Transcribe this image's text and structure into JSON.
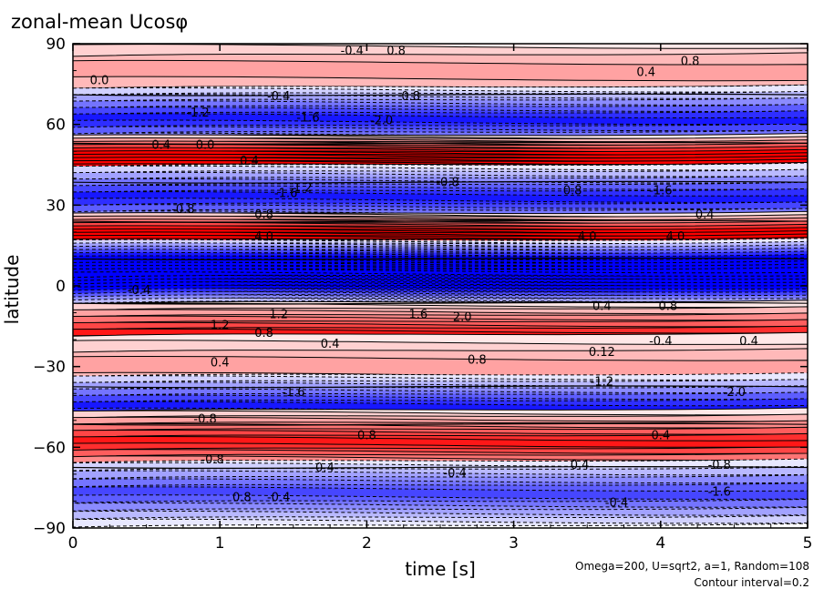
{
  "chart_data": {
    "type": "heatmap",
    "title": "zonal-mean Ucosφ",
    "xlabel": "time [s]",
    "ylabel": "latitude",
    "xlim": [
      0,
      5
    ],
    "ylim": [
      -90,
      90
    ],
    "x_ticks": [
      "0",
      "1",
      "2",
      "3",
      "4",
      "5"
    ],
    "x_tick_values": [
      0,
      1,
      2,
      3,
      4,
      5
    ],
    "y_ticks": [
      "90",
      "60",
      "30",
      "0",
      "−30",
      "−60",
      "−90"
    ],
    "y_tick_values": [
      90,
      60,
      30,
      0,
      -30,
      -60,
      -90
    ],
    "annotations": [
      "Omega=200, U=sqrt2, a=1, Random=108",
      "Contour interval=0.2"
    ],
    "contour_interval": 0.2,
    "colors": {
      "positive": "#ff0000",
      "negative": "#0000ff",
      "zero": "#ffffff"
    },
    "bands": [
      {
        "lat": 80,
        "amplitude": 0.8,
        "sign": 1
      },
      {
        "lat": 62,
        "amplitude": 2.0,
        "sign": -1
      },
      {
        "lat": 44,
        "amplitude": 4.0,
        "sign": 1
      },
      {
        "lat": 33,
        "amplitude": 2.0,
        "sign": -1
      },
      {
        "lat": 15,
        "amplitude": 4.0,
        "sign": 1
      },
      {
        "lat": 5,
        "amplitude": 4.0,
        "sign": -1
      },
      {
        "lat": -18,
        "amplitude": 2.0,
        "sign": 1
      },
      {
        "lat": -30,
        "amplitude": 0.8,
        "sign": 1
      },
      {
        "lat": -45,
        "amplitude": 2.0,
        "sign": -1
      },
      {
        "lat": -58,
        "amplitude": 2.0,
        "sign": 1
      },
      {
        "lat": -77,
        "amplitude": 1.6,
        "sign": -1
      }
    ],
    "contour_labels": [
      {
        "text": "-0.4",
        "x": 1.9,
        "y": 86
      },
      {
        "text": "0.8",
        "x": 2.2,
        "y": 86
      },
      {
        "text": "0.0",
        "x": 0.18,
        "y": 75
      },
      {
        "text": "0.4",
        "x": 3.9,
        "y": 78
      },
      {
        "text": "0.8",
        "x": 4.2,
        "y": 82
      },
      {
        "text": "0.8",
        "x": 2.3,
        "y": 69
      },
      {
        "text": "-0.4",
        "x": 1.4,
        "y": 69
      },
      {
        "text": "-1.2",
        "x": 0.85,
        "y": 63
      },
      {
        "text": "-1.6",
        "x": 1.6,
        "y": 61
      },
      {
        "text": "-2.0",
        "x": 2.1,
        "y": 60
      },
      {
        "text": "0.4",
        "x": 0.6,
        "y": 51
      },
      {
        "text": "0.0",
        "x": 0.9,
        "y": 51
      },
      {
        "text": "0.4",
        "x": 1.2,
        "y": 45
      },
      {
        "text": "-0.8",
        "x": 2.55,
        "y": 37
      },
      {
        "text": "-1.6",
        "x": 1.45,
        "y": 33
      },
      {
        "text": "-1.2",
        "x": 1.55,
        "y": 35
      },
      {
        "text": "0.8",
        "x": 3.4,
        "y": 34
      },
      {
        "text": "-1.6",
        "x": 4.0,
        "y": 34
      },
      {
        "text": "-0.8",
        "x": 0.75,
        "y": 27
      },
      {
        "text": "0.8",
        "x": 1.3,
        "y": 25
      },
      {
        "text": "0.4",
        "x": 4.3,
        "y": 25
      },
      {
        "text": "4.0",
        "x": 1.3,
        "y": 17
      },
      {
        "text": "4.0",
        "x": 3.5,
        "y": 17
      },
      {
        "text": "4.0",
        "x": 4.1,
        "y": 17
      },
      {
        "text": "-0.4",
        "x": 0.45,
        "y": -3
      },
      {
        "text": "1.2",
        "x": 1.4,
        "y": -12
      },
      {
        "text": "1.6",
        "x": 2.35,
        "y": -12
      },
      {
        "text": "2.0",
        "x": 2.65,
        "y": -13
      },
      {
        "text": "0.4",
        "x": 3.6,
        "y": -9
      },
      {
        "text": "0.8",
        "x": 4.05,
        "y": -9
      },
      {
        "text": "1.2",
        "x": 1.0,
        "y": -16
      },
      {
        "text": "0.8",
        "x": 1.3,
        "y": -19
      },
      {
        "text": "0.4",
        "x": 1.75,
        "y": -23
      },
      {
        "text": "-0.4",
        "x": 4.0,
        "y": -22
      },
      {
        "text": "0.4",
        "x": 4.6,
        "y": -22
      },
      {
        "text": "0.12",
        "x": 3.6,
        "y": -26
      },
      {
        "text": "0.8",
        "x": 2.75,
        "y": -29
      },
      {
        "text": "0.4",
        "x": 1.0,
        "y": -30
      },
      {
        "text": "-1.6",
        "x": 1.5,
        "y": -41
      },
      {
        "text": "-1.2",
        "x": 3.6,
        "y": -37
      },
      {
        "text": "-2.0",
        "x": 4.5,
        "y": -41
      },
      {
        "text": "-0.8",
        "x": 0.9,
        "y": -51
      },
      {
        "text": "0.8",
        "x": 2.0,
        "y": -57
      },
      {
        "text": "0.4",
        "x": 4.0,
        "y": -57
      },
      {
        "text": "-0.8",
        "x": 0.95,
        "y": -66
      },
      {
        "text": "-0.4",
        "x": 1.7,
        "y": -69
      },
      {
        "text": "-0.4",
        "x": 2.6,
        "y": -71
      },
      {
        "text": "0.4",
        "x": 3.45,
        "y": -68
      },
      {
        "text": "-0.8",
        "x": 4.4,
        "y": -68
      },
      {
        "text": "0.8",
        "x": 1.15,
        "y": -80
      },
      {
        "text": "-0.4",
        "x": 1.4,
        "y": -80
      },
      {
        "text": "-0.4",
        "x": 3.7,
        "y": -82
      },
      {
        "text": "-1.6",
        "x": 4.4,
        "y": -78
      }
    ]
  }
}
